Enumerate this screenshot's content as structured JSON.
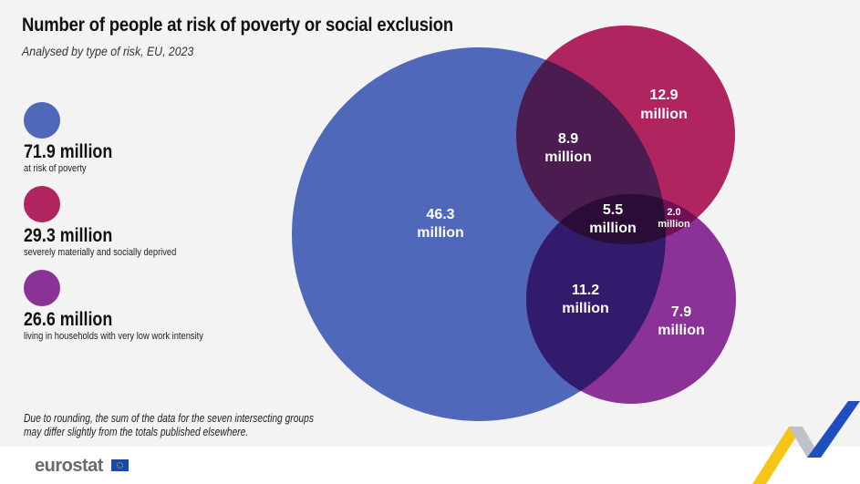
{
  "header": {
    "title": "Number of people at risk of poverty or social exclusion",
    "subtitle": "Analysed by type of risk, EU, 2023"
  },
  "legend": [
    {
      "value": "71.9  million",
      "label": "at risk of poverty",
      "color": "#5068b9"
    },
    {
      "value": "29.3 million",
      "label": "severely materially and socially deprived",
      "color": "#b0245f"
    },
    {
      "value": "26.6 million",
      "label": "living in households with very low work intensity",
      "color": "#8b3296"
    }
  ],
  "venn": {
    "poverty_only": {
      "value": "46.3",
      "unit": "million"
    },
    "deprived_only": {
      "value": "12.9",
      "unit": "million"
    },
    "lowwork_only": {
      "value": "7.9",
      "unit": "million"
    },
    "poverty_deprived": {
      "value": "8.9",
      "unit": "million"
    },
    "poverty_lowwork": {
      "value": "11.2",
      "unit": "million"
    },
    "deprived_lowwork": {
      "value": "2.0",
      "unit": "million"
    },
    "all_three": {
      "value": "5.5",
      "unit": "million"
    },
    "colors": {
      "poverty_deprived": "#4a1c50",
      "poverty_lowwork": "#321a6c",
      "deprived_lowwork": "#6e1054",
      "all_three": "#2b0c36"
    }
  },
  "note": {
    "line1": "Due to rounding, the sum of the data for the seven intersecting groups",
    "line2": "may differ slightly from the totals published elsewhere."
  },
  "footer": {
    "logo": "eurostat"
  }
}
